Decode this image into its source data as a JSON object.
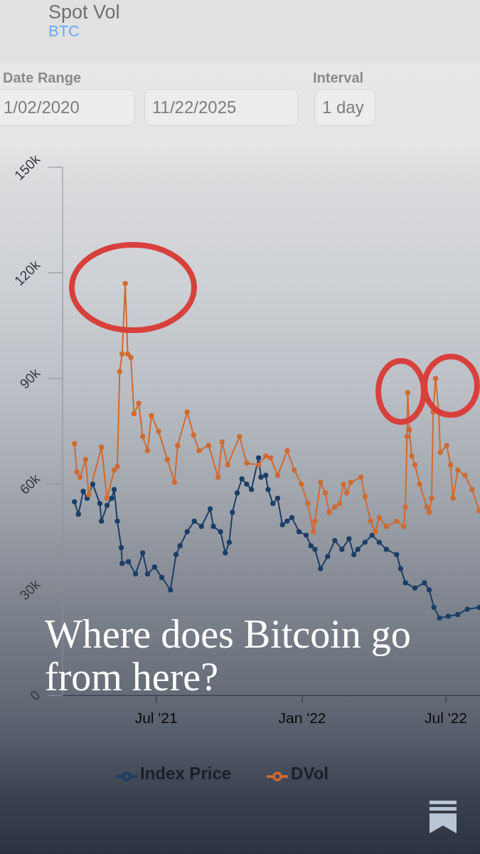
{
  "chart_data": {
    "type": "line",
    "title": "Spot Vol",
    "subtitle": "BTC",
    "annotations": [
      "Date Range",
      "1/02/2020",
      "11/22/2025",
      "Interval",
      "1 day",
      "Where does Bitcoin go from here?"
    ],
    "xlim": [
      "2021-03-05",
      "2022-08-13"
    ],
    "xticks": [
      {
        "value": "2021-07-01",
        "label": "Jul '21"
      },
      {
        "value": "2022-01-01",
        "label": "Jan '22"
      },
      {
        "value": "2022-07-01",
        "label": "Jul '22"
      }
    ],
    "ylim": [
      0,
      150000
    ],
    "yticks": [
      0,
      {
        "value": 30000,
        "label": "30k"
      },
      {
        "value": 60000,
        "label": "60k"
      },
      {
        "value": 90000,
        "label": "90k"
      },
      {
        "value": 120000,
        "label": "120k"
      },
      {
        "value": 150000,
        "label": "150k"
      }
    ],
    "legend": "bottom",
    "marker": "circle",
    "series": [
      {
        "name": "Index Price",
        "color": "#1c3d66",
        "x": [
          "2021-03-20",
          "2021-03-25",
          "2021-03-31",
          "2021-04-05",
          "2021-04-12",
          "2021-04-21",
          "2021-04-23",
          "2021-04-30",
          "2021-05-06",
          "2021-05-09",
          "2021-05-13",
          "2021-05-18",
          "2021-05-19",
          "2021-05-27",
          "2021-06-05",
          "2021-06-14",
          "2021-06-20",
          "2021-06-29",
          "2021-07-08",
          "2021-07-19",
          "2021-07-26",
          "2021-07-31",
          "2021-08-09",
          "2021-08-18",
          "2021-08-27",
          "2021-09-07",
          "2021-09-11",
          "2021-09-20",
          "2021-09-26",
          "2021-10-01",
          "2021-10-05",
          "2021-10-11",
          "2021-10-17",
          "2021-10-23",
          "2021-10-29",
          "2021-11-07",
          "2021-11-10",
          "2021-11-16",
          "2021-11-19",
          "2021-11-25",
          "2021-12-01",
          "2021-12-07",
          "2021-12-13",
          "2021-12-19",
          "2021-12-28",
          "2022-01-06",
          "2022-01-12",
          "2022-01-17",
          "2022-01-24",
          "2022-02-02",
          "2022-02-11",
          "2022-02-20",
          "2022-03-01",
          "2022-03-07",
          "2022-03-12",
          "2022-03-21",
          "2022-03-30",
          "2022-04-08",
          "2022-04-17",
          "2022-04-30",
          "2022-05-05",
          "2022-05-11",
          "2022-05-23",
          "2022-06-04",
          "2022-06-10",
          "2022-06-16",
          "2022-06-23",
          "2022-07-04",
          "2022-07-16",
          "2022-07-28",
          "2022-08-12"
        ],
        "values": [
          55000,
          51500,
          58000,
          56000,
          60000,
          54500,
          49500,
          54000,
          56000,
          58500,
          49500,
          42000,
          37500,
          38000,
          34500,
          40500,
          34500,
          36500,
          33500,
          30000,
          40000,
          42500,
          46500,
          49500,
          48000,
          53000,
          48000,
          46500,
          40500,
          43500,
          52000,
          57500,
          61500,
          60000,
          58500,
          67500,
          62000,
          62500,
          58500,
          54500,
          56000,
          48500,
          49500,
          50500,
          46500,
          45500,
          42500,
          41500,
          36000,
          39500,
          44000,
          41500,
          44500,
          40000,
          41500,
          43500,
          45500,
          43500,
          41500,
          40000,
          36000,
          32000,
          30500,
          32000,
          30000,
          25000,
          22000,
          22500,
          23000,
          24500,
          25000
        ]
      },
      {
        "name": "DVol",
        "color": "#cf6a30",
        "x": [
          "2021-03-20",
          "2021-03-23",
          "2021-03-27",
          "2021-04-03",
          "2021-04-07",
          "2021-04-23",
          "2021-04-30",
          "2021-05-09",
          "2021-05-13",
          "2021-05-16",
          "2021-05-19",
          "2021-05-23",
          "2021-05-26",
          "2021-05-30",
          "2021-06-03",
          "2021-06-09",
          "2021-06-14",
          "2021-06-20",
          "2021-06-25",
          "2021-07-04",
          "2021-07-15",
          "2021-07-24",
          "2021-07-28",
          "2021-08-09",
          "2021-08-17",
          "2021-08-24",
          "2021-09-05",
          "2021-09-17",
          "2021-09-22",
          "2021-09-29",
          "2021-10-14",
          "2021-10-23",
          "2021-11-07",
          "2021-11-16",
          "2021-11-22",
          "2021-12-01",
          "2021-12-13",
          "2021-12-22",
          "2021-12-31",
          "2022-01-08",
          "2022-01-15",
          "2022-01-17",
          "2022-01-24",
          "2022-01-30",
          "2022-02-04",
          "2022-02-11",
          "2022-02-17",
          "2022-02-22",
          "2022-02-26",
          "2022-03-03",
          "2022-03-16",
          "2022-03-21",
          "2022-03-28",
          "2022-04-03",
          "2022-04-08",
          "2022-04-17",
          "2022-04-30",
          "2022-05-09",
          "2022-05-11",
          "2022-05-13",
          "2022-05-14",
          "2022-05-16",
          "2022-05-19",
          "2022-05-23",
          "2022-05-29",
          "2022-06-07",
          "2022-06-10",
          "2022-06-13",
          "2022-06-15",
          "2022-06-18",
          "2022-06-22",
          "2022-06-24",
          "2022-07-02",
          "2022-07-07",
          "2022-07-10",
          "2022-07-16",
          "2022-07-25",
          "2022-08-03",
          "2022-08-12"
        ],
        "values": [
          71500,
          63500,
          62000,
          67000,
          57000,
          70500,
          56000,
          64000,
          65000,
          92000,
          97000,
          117000,
          97000,
          96000,
          80000,
          83000,
          73500,
          69500,
          79500,
          75000,
          67000,
          60500,
          71000,
          80500,
          74000,
          69500,
          71000,
          62000,
          72000,
          65500,
          73500,
          66000,
          65500,
          68000,
          67500,
          62500,
          69500,
          64000,
          60000,
          54500,
          46500,
          49500,
          60500,
          57500,
          52000,
          53500,
          54500,
          60000,
          57500,
          60500,
          62000,
          56500,
          49500,
          46500,
          50500,
          48000,
          49500,
          48000,
          53500,
          73500,
          86000,
          75500,
          68000,
          65500,
          60000,
          53500,
          52000,
          56000,
          80500,
          90000,
          80500,
          69000,
          71000,
          65500,
          56000,
          64000,
          62500,
          58500,
          52500
        ]
      }
    ]
  }
}
